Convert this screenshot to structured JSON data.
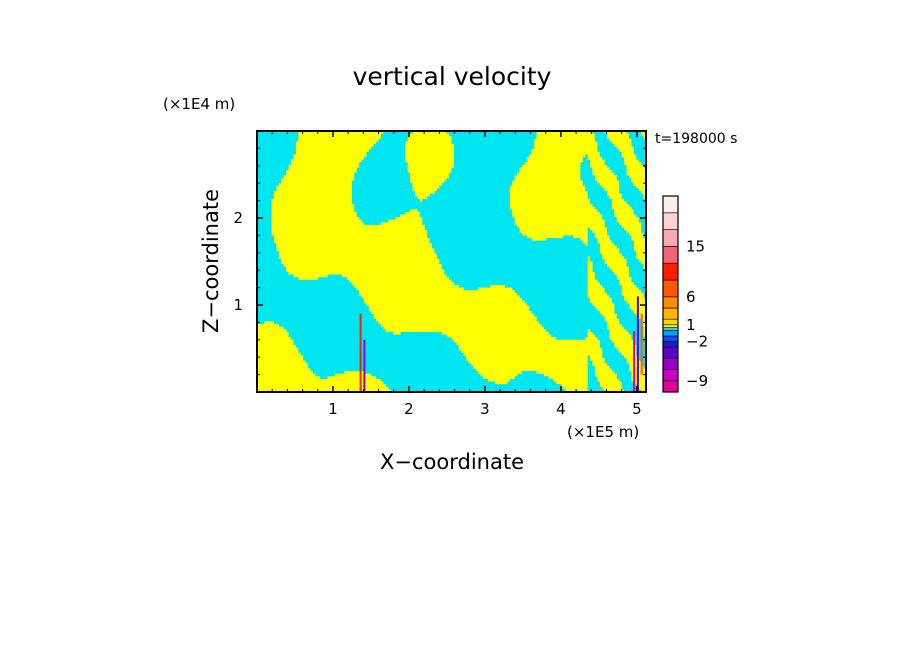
{
  "chart_data": {
    "type": "heatmap",
    "title": "vertical velocity",
    "xlabel": "X−coordinate",
    "ylabel": "Z−coordinate",
    "x_unit_label": "(×1E5 m)",
    "y_unit_label": "(×1E4 m)",
    "time_label": "t=198000 s",
    "xlim": [
      0,
      5.12
    ],
    "ylim": [
      0,
      3.0
    ],
    "x_ticks": [
      1,
      2,
      3,
      4,
      5
    ],
    "x_tick_labels": [
      "1",
      "2",
      "3",
      "4",
      "5"
    ],
    "y_ticks": [
      1,
      2
    ],
    "y_tick_labels": [
      "1",
      "2"
    ],
    "colorbar": {
      "levels": [
        {
          "value": -11,
          "color": "#e80096"
        },
        {
          "value": -9,
          "color": "#c800c8"
        },
        {
          "value": -7,
          "color": "#9600c8"
        },
        {
          "value": -5,
          "color": "#5a00c8"
        },
        {
          "value": -3,
          "color": "#1e1eb4"
        },
        {
          "value": -2,
          "color": "#0050ff"
        },
        {
          "value": -1,
          "color": "#00a0ff"
        },
        {
          "value": 0,
          "color": "#00e6f0"
        },
        {
          "value": 0.5,
          "color": "#ffff00"
        },
        {
          "value": 1,
          "color": "#ffd400"
        },
        {
          "value": 2,
          "color": "#ffb400"
        },
        {
          "value": 4,
          "color": "#ff8c00"
        },
        {
          "value": 6,
          "color": "#ff5a00"
        },
        {
          "value": 9,
          "color": "#ff1e00"
        },
        {
          "value": 12,
          "color": "#f06478"
        },
        {
          "value": 15,
          "color": "#f8a8b0"
        },
        {
          "value": 18,
          "color": "#fcd2d2"
        },
        {
          "value": 21,
          "color": "#ffecec"
        }
      ],
      "tick_labels": [
        "15",
        "6",
        "1",
        "−2",
        "−9"
      ],
      "tick_values": [
        15,
        6,
        1,
        -2,
        -9
      ]
    },
    "field_colors": {
      "positive": "#ffff00",
      "negative": "#00e6f0"
    }
  }
}
